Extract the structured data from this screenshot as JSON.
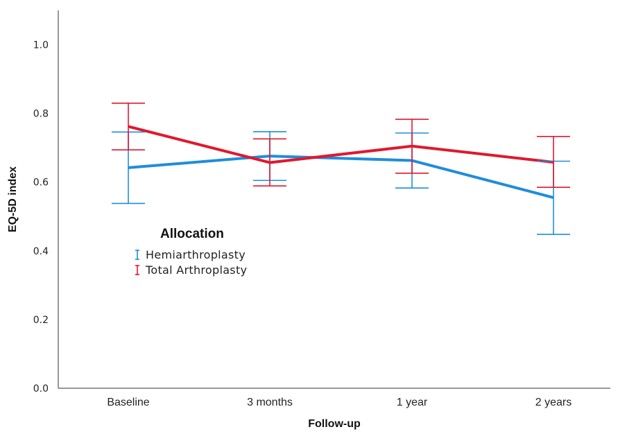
{
  "chart_data": {
    "type": "line",
    "xlabel": "Follow-up",
    "ylabel": "EQ-5D index",
    "categories": [
      "Baseline",
      "3 months",
      "1 year",
      "2 years"
    ],
    "ylim": [
      0.0,
      1.1
    ],
    "yticks": [
      "0.0",
      "0.2",
      "0.4",
      "0.6",
      "0.8",
      "1.0"
    ],
    "ytick_values": [
      0.0,
      0.2,
      0.4,
      0.6,
      0.8,
      1.0
    ],
    "grid": false,
    "error_bars": true,
    "legend": {
      "title": "Allocation",
      "placement": "center-left"
    },
    "series": [
      {
        "name": "Hemiarthroplasty",
        "color": "#1f8ddc",
        "values": [
          0.642,
          0.676,
          0.663,
          0.555
        ],
        "lower": [
          0.538,
          0.605,
          0.583,
          0.448
        ],
        "upper": [
          0.746,
          0.747,
          0.743,
          0.661
        ]
      },
      {
        "name": "Total Arthroplasty",
        "color": "#e0182d",
        "values": [
          0.762,
          0.657,
          0.705,
          0.658
        ],
        "lower": [
          0.694,
          0.589,
          0.626,
          0.585
        ],
        "upper": [
          0.83,
          0.726,
          0.783,
          0.733
        ]
      }
    ]
  }
}
